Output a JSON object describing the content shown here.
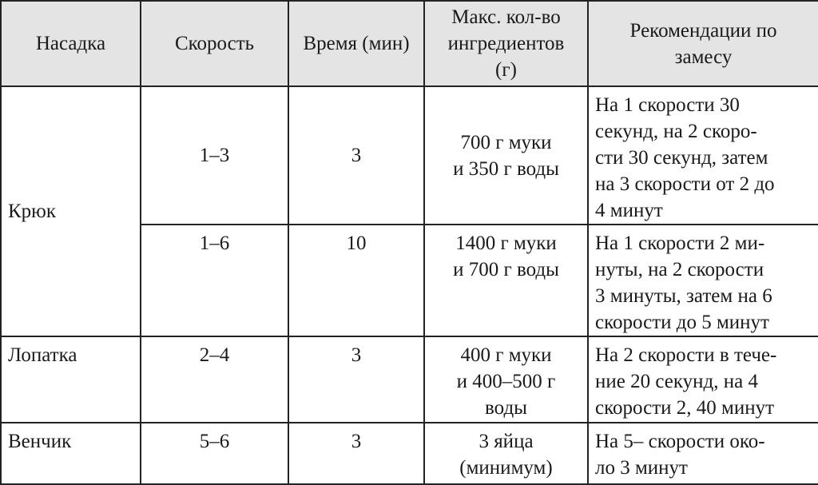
{
  "table": {
    "headers": [
      "Насадка",
      "Скорость",
      "Время (мин)",
      "Макс. кол-во\nингредиентов\n(г)",
      "Рекомендации по\nзамесу"
    ],
    "rows": [
      {
        "attachment": "Крюк",
        "speed": "1–3",
        "time": "3",
        "max": "700 г муки\nи 350 г воды",
        "rec": "На 1 скорости 30\nсекунд, на 2 скоро-\nсти 30 секунд, затем\nна 3 скорости от 2 до\n4 минут"
      },
      {
        "attachment": "",
        "speed": "1–6",
        "time": "10",
        "max": "1400 г муки\nи 700 г воды",
        "rec": "На 1 скорости 2 ми-\nнуты, на 2 скорости\n3 минуты, затем на 6\nскорости до 5 минут"
      },
      {
        "attachment": "Лопатка",
        "speed": "2–4",
        "time": "3",
        "max": "400 г муки\nи 400–500 г\nводы",
        "rec": "На 2 скорости в тече-\nние 20 секунд, на 4\nскорости 2, 40 минут"
      },
      {
        "attachment": "Венчик",
        "speed": "5–6",
        "time": "3",
        "max": "3 яйца\n(минимум)",
        "rec": "На 5– скорости око-\nло 3 минут"
      }
    ]
  }
}
